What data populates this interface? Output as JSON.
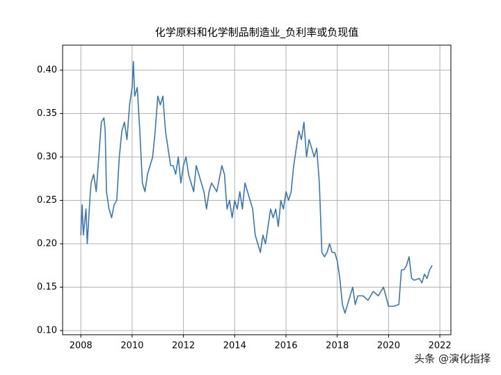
{
  "chart_data": {
    "type": "line",
    "title": "化学原料和化学制品制造业_负利率或负现值",
    "color": "#3a76af",
    "grid": true,
    "xlim": [
      2007.29,
      2022.43
    ],
    "ylim": [
      0.0952,
      0.4288
    ],
    "xticks": [
      2008,
      2010,
      2012,
      2014,
      2016,
      2018,
      2020,
      2022
    ],
    "yticks": [
      {
        "value": 0.1,
        "label": "0.10"
      },
      0.15,
      {
        "value": 0.2,
        "label": "0.20"
      },
      0.25,
      {
        "value": 0.3,
        "label": "0.30"
      },
      0.35,
      {
        "value": 0.4,
        "label": "0.40"
      }
    ],
    "x": [
      2008.0,
      2008.05,
      2008.1,
      2008.2,
      2008.25,
      2008.35,
      2008.4,
      2008.5,
      2008.6,
      2008.7,
      2008.8,
      2008.9,
      2008.95,
      2009.0,
      2009.1,
      2009.2,
      2009.3,
      2009.4,
      2009.5,
      2009.6,
      2009.7,
      2009.8,
      2009.9,
      2010.0,
      2010.05,
      2010.1,
      2010.2,
      2010.3,
      2010.4,
      2010.5,
      2010.6,
      2010.7,
      2010.8,
      2010.9,
      2011.0,
      2011.1,
      2011.2,
      2011.3,
      2011.4,
      2011.5,
      2011.6,
      2011.7,
      2011.8,
      2011.9,
      2012.0,
      2012.1,
      2012.2,
      2012.3,
      2012.4,
      2012.5,
      2012.6,
      2012.7,
      2012.8,
      2012.9,
      2013.0,
      2013.1,
      2013.3,
      2013.5,
      2013.6,
      2013.7,
      2013.8,
      2013.9,
      2014.0,
      2014.1,
      2014.2,
      2014.3,
      2014.4,
      2014.5,
      2014.6,
      2014.7,
      2014.8,
      2014.9,
      2015.0,
      2015.1,
      2015.2,
      2015.3,
      2015.4,
      2015.5,
      2015.6,
      2015.7,
      2015.8,
      2015.9,
      2016.0,
      2016.1,
      2016.2,
      2016.3,
      2016.4,
      2016.5,
      2016.6,
      2016.7,
      2016.8,
      2016.9,
      2017.0,
      2017.1,
      2017.2,
      2017.3,
      2017.4,
      2017.5,
      2017.6,
      2017.7,
      2017.8,
      2017.9,
      2018.0,
      2018.1,
      2018.2,
      2018.3,
      2018.4,
      2018.5,
      2018.6,
      2018.7,
      2018.8,
      2018.9,
      2019.0,
      2019.2,
      2019.4,
      2019.6,
      2019.8,
      2020.0,
      2020.2,
      2020.4,
      2020.5,
      2020.6,
      2020.7,
      2020.8,
      2020.9,
      2021.0,
      2021.2,
      2021.3,
      2021.4,
      2021.5,
      2021.6,
      2021.7
    ],
    "values": [
      0.21,
      0.245,
      0.21,
      0.24,
      0.2,
      0.25,
      0.27,
      0.28,
      0.26,
      0.3,
      0.34,
      0.345,
      0.33,
      0.26,
      0.24,
      0.23,
      0.245,
      0.25,
      0.3,
      0.33,
      0.34,
      0.32,
      0.36,
      0.38,
      0.41,
      0.37,
      0.38,
      0.33,
      0.27,
      0.26,
      0.28,
      0.29,
      0.3,
      0.33,
      0.37,
      0.36,
      0.37,
      0.33,
      0.31,
      0.29,
      0.29,
      0.28,
      0.3,
      0.27,
      0.29,
      0.3,
      0.28,
      0.27,
      0.26,
      0.29,
      0.28,
      0.27,
      0.26,
      0.24,
      0.26,
      0.27,
      0.26,
      0.29,
      0.28,
      0.24,
      0.25,
      0.23,
      0.25,
      0.24,
      0.26,
      0.24,
      0.27,
      0.26,
      0.25,
      0.24,
      0.21,
      0.2,
      0.19,
      0.21,
      0.2,
      0.22,
      0.24,
      0.23,
      0.24,
      0.22,
      0.25,
      0.24,
      0.26,
      0.25,
      0.26,
      0.29,
      0.31,
      0.33,
      0.32,
      0.34,
      0.3,
      0.32,
      0.31,
      0.3,
      0.31,
      0.27,
      0.19,
      0.185,
      0.19,
      0.2,
      0.19,
      0.19,
      0.18,
      0.16,
      0.13,
      0.12,
      0.13,
      0.14,
      0.15,
      0.13,
      0.14,
      0.14,
      0.14,
      0.135,
      0.145,
      0.14,
      0.15,
      0.128,
      0.128,
      0.13,
      0.17,
      0.17,
      0.175,
      0.185,
      0.16,
      0.158,
      0.16,
      0.155,
      0.165,
      0.16,
      0.17,
      0.175
    ],
    "watermark": "头条 @演化指择"
  }
}
